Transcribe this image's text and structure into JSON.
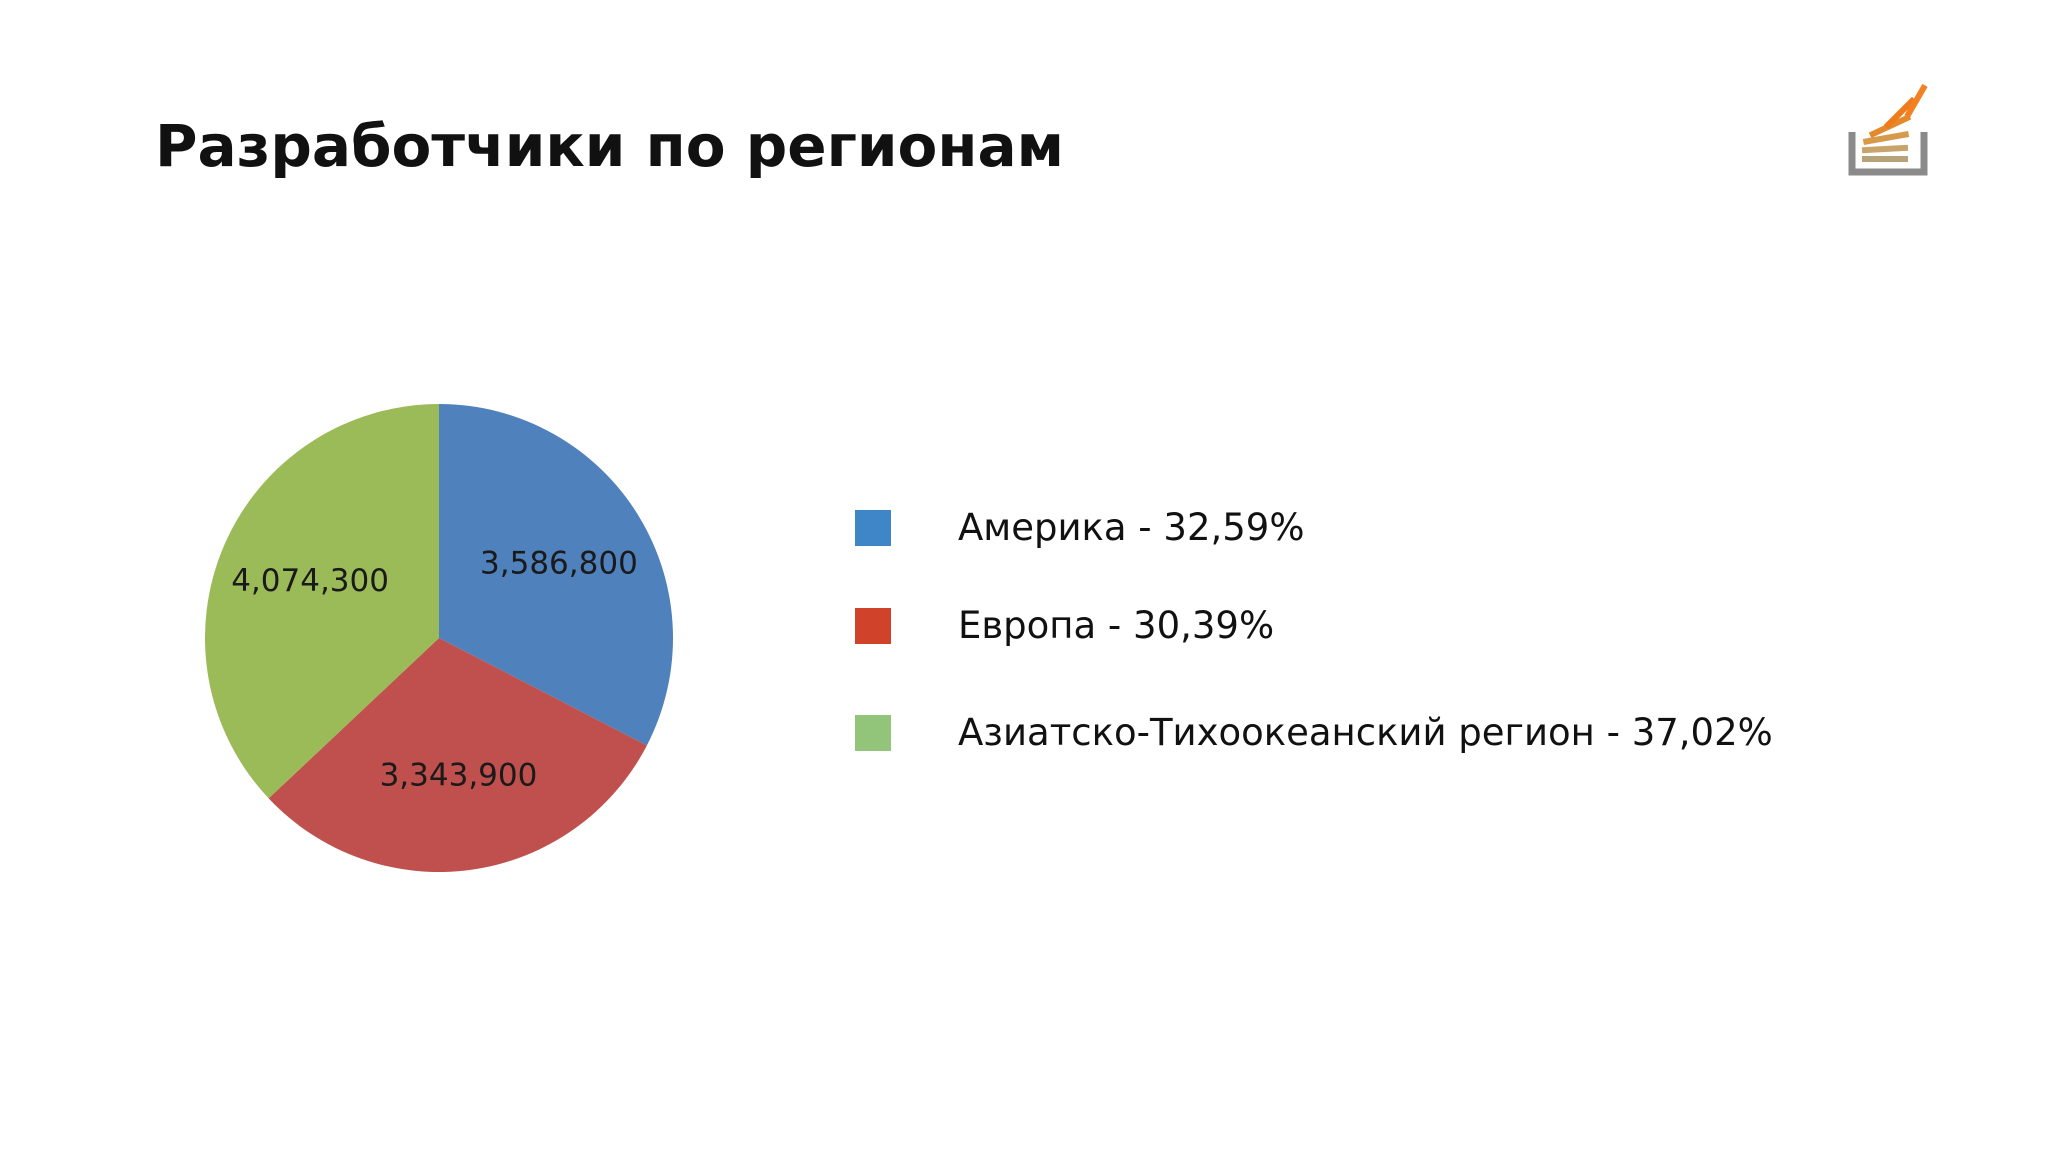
{
  "title": "Разработчики по регионам",
  "logo_icon": "stack-overflow-logo-icon",
  "chart_data": {
    "type": "pie",
    "categories": [
      "Америка",
      "Европа",
      "Азиатско-Тихоокеанский регион"
    ],
    "values": [
      3586800,
      3343900,
      4074300
    ],
    "data_labels": [
      "3,586,800",
      "3,343,900",
      "4,074,300"
    ],
    "colors": [
      "#4f81bd",
      "#c0504d",
      "#9bbb59"
    ],
    "start_angle": "12 o'clock",
    "direction": "clockwise",
    "legend_position": "right"
  },
  "legend": {
    "items": [
      {
        "label": "Америка - 32,59%",
        "color": "#3f86c9"
      },
      {
        "label": "Европа - 30,39%",
        "color": "#d0432a"
      },
      {
        "label": "Азиатско-Тихоокеанский регион - 37,02%",
        "color": "#92c57a"
      }
    ]
  }
}
